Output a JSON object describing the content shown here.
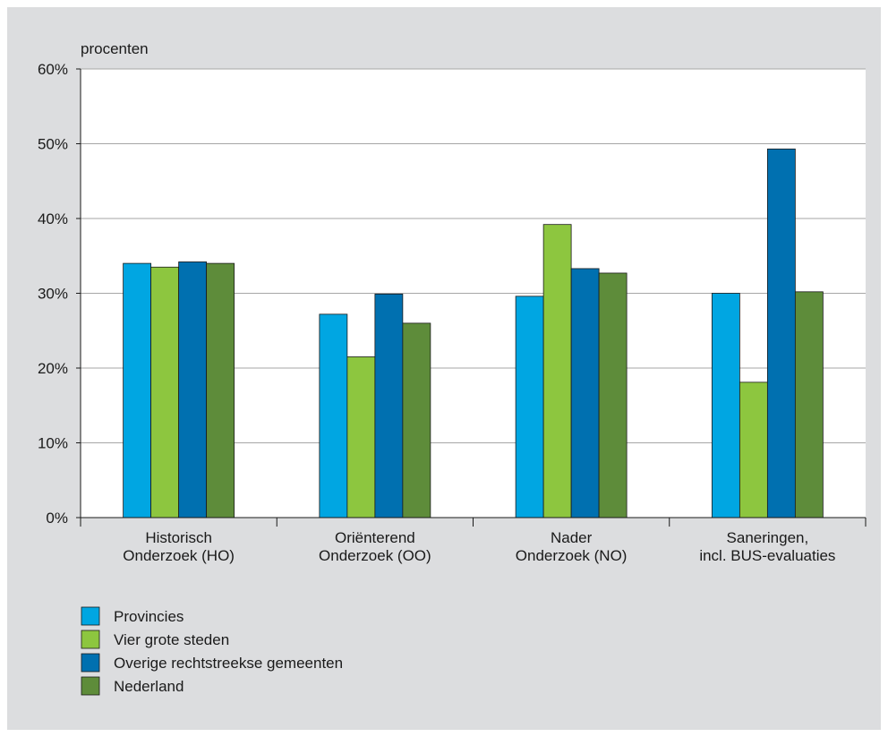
{
  "chart_data": {
    "type": "bar",
    "ylabel": "procenten",
    "ylim": [
      0,
      60
    ],
    "yticks": [
      "0%",
      "10%",
      "20%",
      "30%",
      "40%",
      "50%",
      "60%"
    ],
    "categories": [
      [
        "Historisch",
        "Onderzoek (HO)"
      ],
      [
        "Oriënterend",
        "Onderzoek (OO)"
      ],
      [
        "Nader",
        "Onderzoek (NO)"
      ],
      [
        "Saneringen,",
        "incl. BUS-evaluaties"
      ]
    ],
    "series": [
      {
        "name": "Provincies",
        "color": "#00a6e2",
        "values": [
          34.0,
          27.2,
          29.6,
          30.0
        ]
      },
      {
        "name": "Vier grote steden",
        "color": "#8dc63f",
        "values": [
          33.5,
          21.5,
          39.2,
          18.1
        ]
      },
      {
        "name": "Overige rechtstreekse gemeenten",
        "color": "#0070b0",
        "values": [
          34.2,
          29.9,
          33.3,
          49.3
        ]
      },
      {
        "name": "Nederland",
        "color": "#5e8c3a",
        "values": [
          34.0,
          26.0,
          32.7,
          30.2
        ]
      }
    ],
    "grid": true,
    "legend": "bottom-left"
  }
}
